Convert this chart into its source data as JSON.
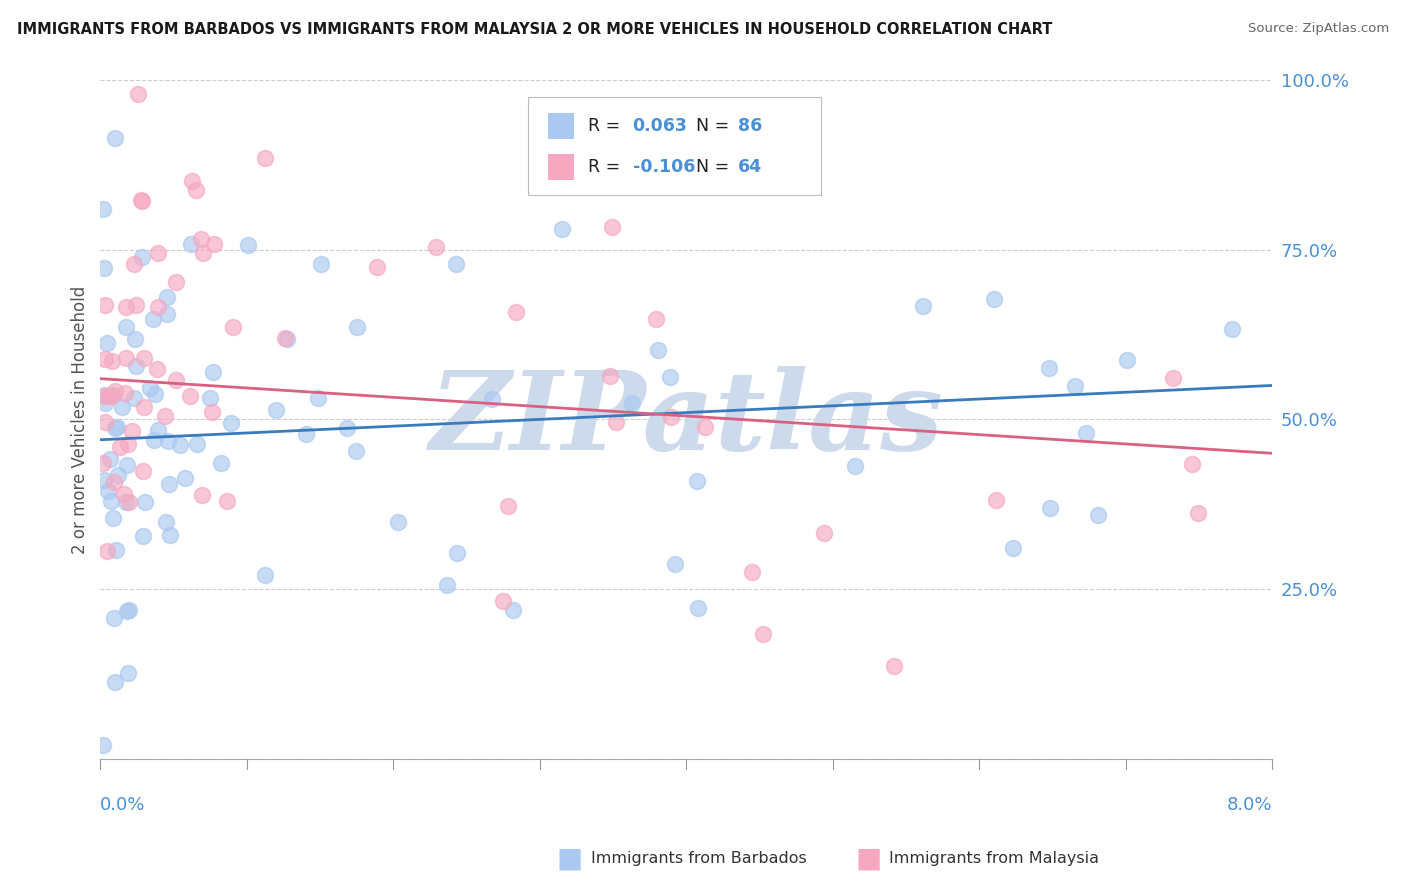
{
  "title": "IMMIGRANTS FROM BARBADOS VS IMMIGRANTS FROM MALAYSIA 2 OR MORE VEHICLES IN HOUSEHOLD CORRELATION CHART",
  "source": "Source: ZipAtlas.com",
  "ylabel_label": "2 or more Vehicles in Household",
  "xlim": [
    0.0,
    8.0
  ],
  "ylim": [
    0.0,
    100.0
  ],
  "barbados_R": 0.063,
  "barbados_N": 86,
  "malaysia_R": -0.106,
  "malaysia_N": 64,
  "barbados_color": "#aac8f0",
  "malaysia_color": "#f5a8c0",
  "barbados_line_color": "#3a7abf",
  "malaysia_line_color": "#d96080",
  "watermark": "ZIPatlas",
  "watermark_color": "#ccdaeb",
  "background_color": "#ffffff",
  "grid_color": "#cccccc",
  "barbados_line_y0": 47.0,
  "barbados_line_y8": 55.0,
  "malaysia_line_y0": 56.0,
  "malaysia_line_y8": 45.0
}
